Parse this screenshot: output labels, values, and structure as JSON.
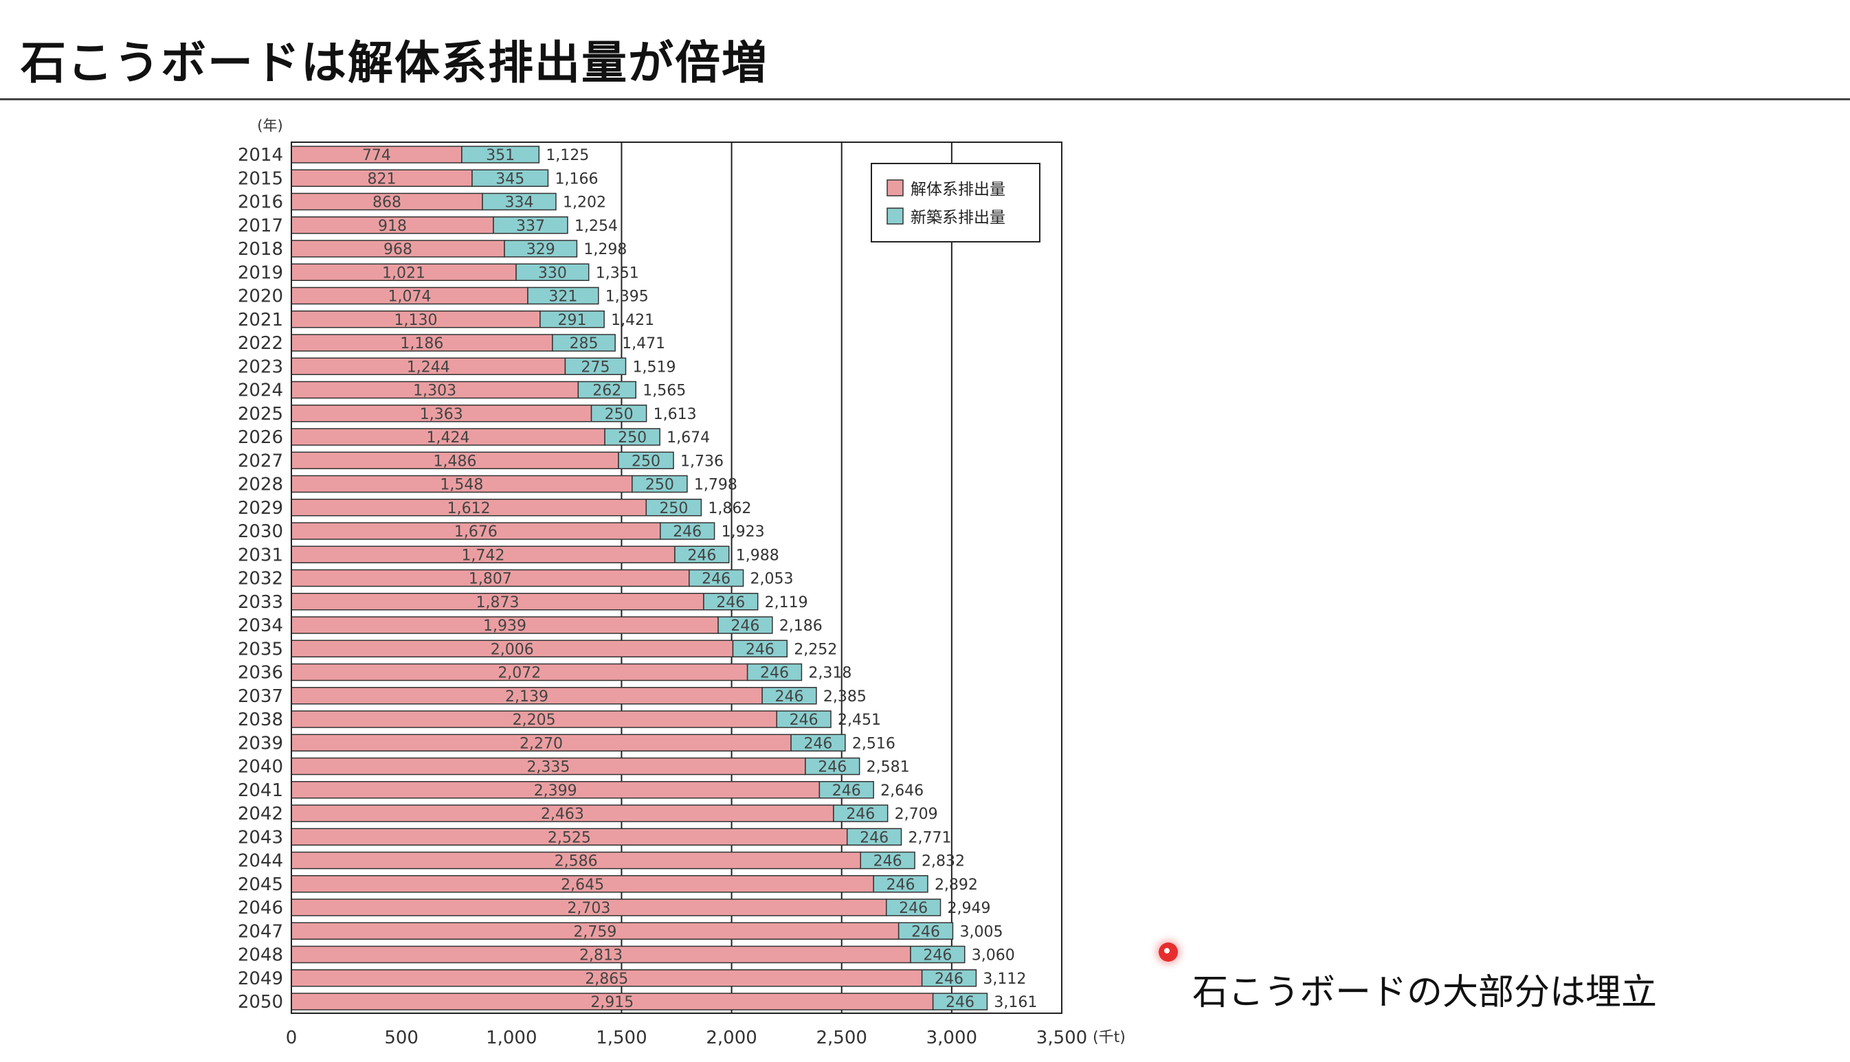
{
  "slide": {
    "title": "石こうボードは解体系排出量が倍増",
    "annotation": "石こうボードの大部分は埋立"
  },
  "colors": {
    "demolition": "#eb9ea1",
    "new_construction": "#8ccfd0",
    "bar_stroke": "#333333",
    "grid": "#222222"
  },
  "chart_data": {
    "type": "bar",
    "orientation": "horizontal",
    "stacked": true,
    "y_unit_label": "(年)",
    "x_unit_label": "(千t)",
    "xlim": [
      0,
      3500
    ],
    "x_ticks": [
      0,
      500,
      1000,
      1500,
      2000,
      2500,
      3000,
      3500
    ],
    "x_tick_labels": [
      "0",
      "500",
      "1,000",
      "1,500",
      "2,000",
      "2,500",
      "3,000",
      "3,500"
    ],
    "gridlines_x": [
      1500,
      2000,
      2500,
      3000
    ],
    "legend_position": "top-right",
    "categories": [
      "2014",
      "2015",
      "2016",
      "2017",
      "2018",
      "2019",
      "2020",
      "2021",
      "2022",
      "2023",
      "2024",
      "2025",
      "2026",
      "2027",
      "2028",
      "2029",
      "2030",
      "2031",
      "2032",
      "2033",
      "2034",
      "2035",
      "2036",
      "2037",
      "2038",
      "2039",
      "2040",
      "2041",
      "2042",
      "2043",
      "2044",
      "2045",
      "2046",
      "2047",
      "2048",
      "2049",
      "2050"
    ],
    "series": [
      {
        "name": "解体系排出量",
        "values": [
          774,
          821,
          868,
          918,
          968,
          1021,
          1074,
          1130,
          1186,
          1244,
          1303,
          1363,
          1424,
          1486,
          1548,
          1612,
          1676,
          1742,
          1807,
          1873,
          1939,
          2006,
          2072,
          2139,
          2205,
          2270,
          2335,
          2399,
          2463,
          2525,
          2586,
          2645,
          2703,
          2759,
          2813,
          2865,
          2915
        ],
        "labels": [
          "774",
          "821",
          "868",
          "918",
          "968",
          "1,021",
          "1,074",
          "1,130",
          "1,186",
          "1,244",
          "1,303",
          "1,363",
          "1,424",
          "1,486",
          "1,548",
          "1,612",
          "1,676",
          "1,742",
          "1,807",
          "1,873",
          "1,939",
          "2,006",
          "2,072",
          "2,139",
          "2,205",
          "2,270",
          "2,335",
          "2,399",
          "2,463",
          "2,525",
          "2,586",
          "2,645",
          "2,703",
          "2,759",
          "2,813",
          "2,865",
          "2,915"
        ]
      },
      {
        "name": "新築系排出量",
        "values": [
          351,
          345,
          334,
          337,
          329,
          330,
          321,
          291,
          285,
          275,
          262,
          250,
          250,
          250,
          250,
          250,
          246,
          246,
          246,
          246,
          246,
          246,
          246,
          246,
          246,
          246,
          246,
          246,
          246,
          246,
          246,
          246,
          246,
          246,
          246,
          246,
          246
        ],
        "labels": [
          "351",
          "345",
          "334",
          "337",
          "329",
          "330",
          "321",
          "291",
          "285",
          "275",
          "262",
          "250",
          "250",
          "250",
          "250",
          "250",
          "246",
          "246",
          "246",
          "246",
          "246",
          "246",
          "246",
          "246",
          "246",
          "246",
          "246",
          "246",
          "246",
          "246",
          "246",
          "246",
          "246",
          "246",
          "246",
          "246",
          "246"
        ]
      }
    ],
    "totals": [
      1125,
      1166,
      1202,
      1254,
      1298,
      1351,
      1395,
      1421,
      1471,
      1519,
      1565,
      1613,
      1674,
      1736,
      1798,
      1862,
      1923,
      1988,
      2053,
      2119,
      2186,
      2252,
      2318,
      2385,
      2451,
      2516,
      2581,
      2646,
      2709,
      2771,
      2832,
      2892,
      2949,
      3005,
      3060,
      3112,
      3161
    ],
    "total_labels": [
      "1,125",
      "1,166",
      "1,202",
      "1,254",
      "1,298",
      "1,351",
      "1,395",
      "1,421",
      "1,471",
      "1,519",
      "1,565",
      "1,613",
      "1,674",
      "1,736",
      "1,798",
      "1,862",
      "1,923",
      "1,988",
      "2,053",
      "2,119",
      "2,186",
      "2,252",
      "2,318",
      "2,385",
      "2,451",
      "2,516",
      "2,581",
      "2,646",
      "2,709",
      "2,771",
      "2,832",
      "2,892",
      "2,949",
      "3,005",
      "3,060",
      "3,112",
      "3,161"
    ]
  }
}
